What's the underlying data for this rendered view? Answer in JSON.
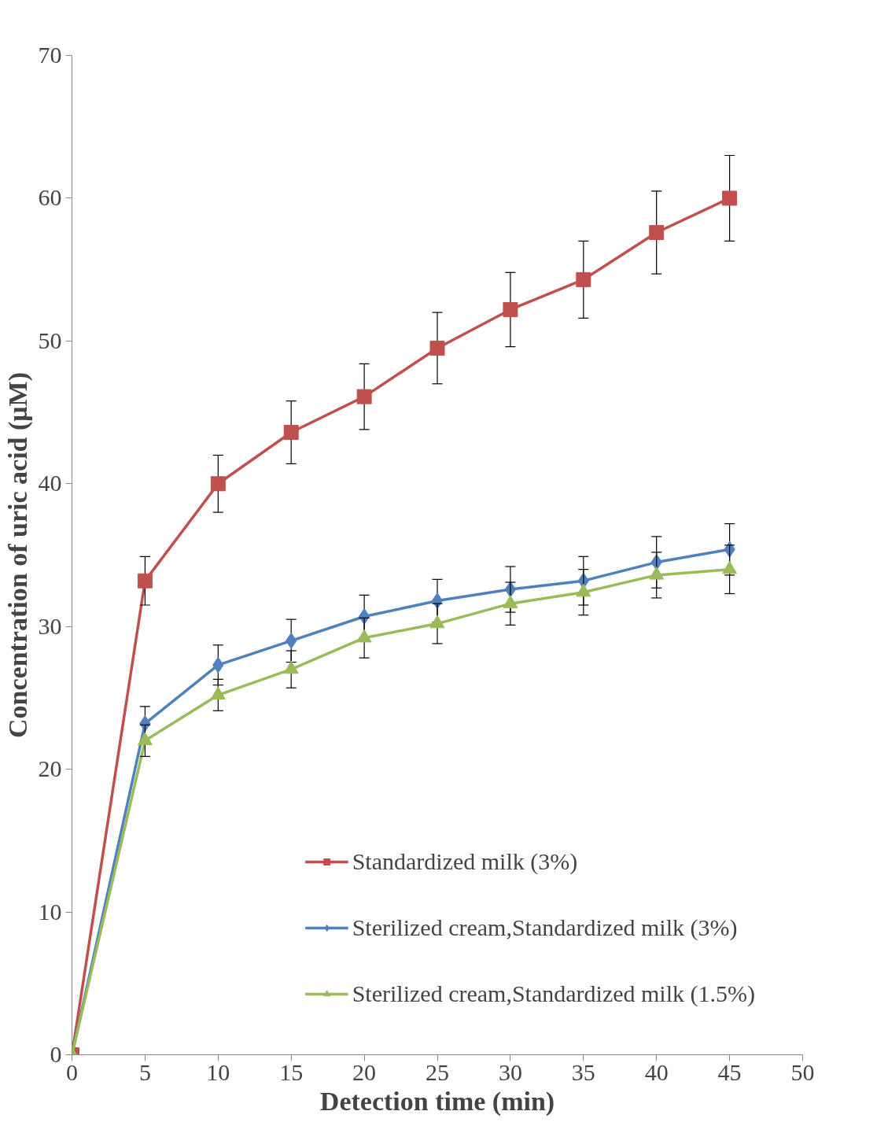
{
  "chart_data": {
    "type": "line",
    "xlabel": "Detection time (min)",
    "ylabel": "Concentration of uric acid (μM)",
    "x": [
      0,
      5,
      10,
      15,
      20,
      25,
      30,
      35,
      40,
      45
    ],
    "xlim": [
      0,
      50
    ],
    "xticks": [
      0,
      5,
      10,
      15,
      20,
      25,
      30,
      35,
      40,
      45,
      50
    ],
    "ylim": [
      0,
      70
    ],
    "yticks": [
      0,
      10,
      20,
      30,
      40,
      50,
      60,
      70
    ],
    "grid": false,
    "legend": "bottom right",
    "line_style": "solid",
    "series": [
      {
        "name": "Standardized milk (3%)",
        "color": "#c0504d",
        "marker": "square",
        "values": [
          0,
          33.2,
          40.0,
          43.6,
          46.1,
          49.5,
          52.2,
          54.3,
          57.6,
          60.0
        ],
        "errors": [
          null,
          1.7,
          2.0,
          2.2,
          2.3,
          2.5,
          2.6,
          2.7,
          2.9,
          3.0
        ]
      },
      {
        "name": "Sterilized cream,Standardized milk (3%)",
        "color": "#4f81bd",
        "marker": "diamond",
        "values": [
          0,
          23.2,
          27.3,
          29.0,
          30.7,
          31.8,
          32.6,
          33.2,
          34.5,
          35.4
        ],
        "errors": [
          null,
          1.2,
          1.4,
          1.5,
          1.5,
          1.5,
          1.6,
          1.7,
          1.8,
          1.8
        ]
      },
      {
        "name": "Sterilized cream,Standardized milk (1.5%)",
        "color": "#9bbb59",
        "marker": "triangle",
        "values": [
          0,
          22.0,
          25.2,
          27.0,
          29.2,
          30.2,
          31.6,
          32.4,
          33.6,
          34.0
        ],
        "errors": [
          null,
          1.1,
          1.1,
          1.3,
          1.4,
          1.4,
          1.5,
          1.6,
          1.6,
          1.7
        ]
      }
    ]
  }
}
